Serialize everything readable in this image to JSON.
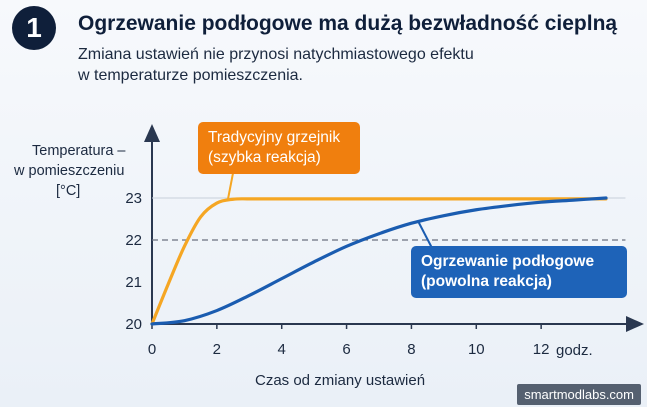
{
  "header": {
    "number": "1",
    "title": "Ogrzewanie podłogowe ma dużą bezwładność cieplną",
    "subtitle_line1": "Zmiana ustawień nie przynosi natychmiastowego efektu",
    "subtitle_line2": "w temperaturze pomieszczenia."
  },
  "chart_data": {
    "type": "line",
    "ylabel": [
      "Temperatura –",
      "w pomieszczeniu",
      "[°C]"
    ],
    "xlabel": "Czas od zmiany ustawień",
    "x_unit_label": "godz.",
    "xlim": [
      0,
      14.5
    ],
    "ylim": [
      20,
      23.6
    ],
    "x_ticks": [
      0,
      2,
      4,
      6,
      8,
      10,
      12
    ],
    "y_ticks": [
      20,
      21,
      22,
      23
    ],
    "reference_line": {
      "y": 22,
      "style": "dashed"
    },
    "series": [
      {
        "name": "Tradycyjny grzejnik (szybka reakcja)",
        "color": "#f5a623",
        "x": [
          0,
          0.5,
          1,
          1.5,
          2,
          2.5,
          3,
          4,
          6,
          8,
          10,
          12,
          14
        ],
        "y": [
          20.0,
          20.95,
          21.85,
          22.55,
          22.88,
          22.97,
          22.98,
          22.98,
          22.98,
          22.98,
          22.98,
          22.98,
          22.98
        ]
      },
      {
        "name": "Ogrzewanie podłogowe (powolna reakcja)",
        "color": "#1a5cb0",
        "x": [
          0,
          1,
          2,
          3,
          4,
          5,
          6,
          7,
          8,
          9,
          10,
          11,
          12,
          13,
          14
        ],
        "y": [
          20.0,
          20.08,
          20.32,
          20.68,
          21.08,
          21.48,
          21.85,
          22.15,
          22.4,
          22.58,
          22.72,
          22.82,
          22.9,
          22.95,
          23.0
        ]
      }
    ],
    "annotations": [
      {
        "line1": "Tradycyjny grzejnik",
        "line2": "(szybka reakcja)",
        "color": "#f07f0e"
      },
      {
        "line1": "Ogrzewanie podłogowe",
        "line2": "(powolna reakcja)",
        "color": "#1e63b8"
      }
    ]
  },
  "watermark": "smartmodlabs.com"
}
